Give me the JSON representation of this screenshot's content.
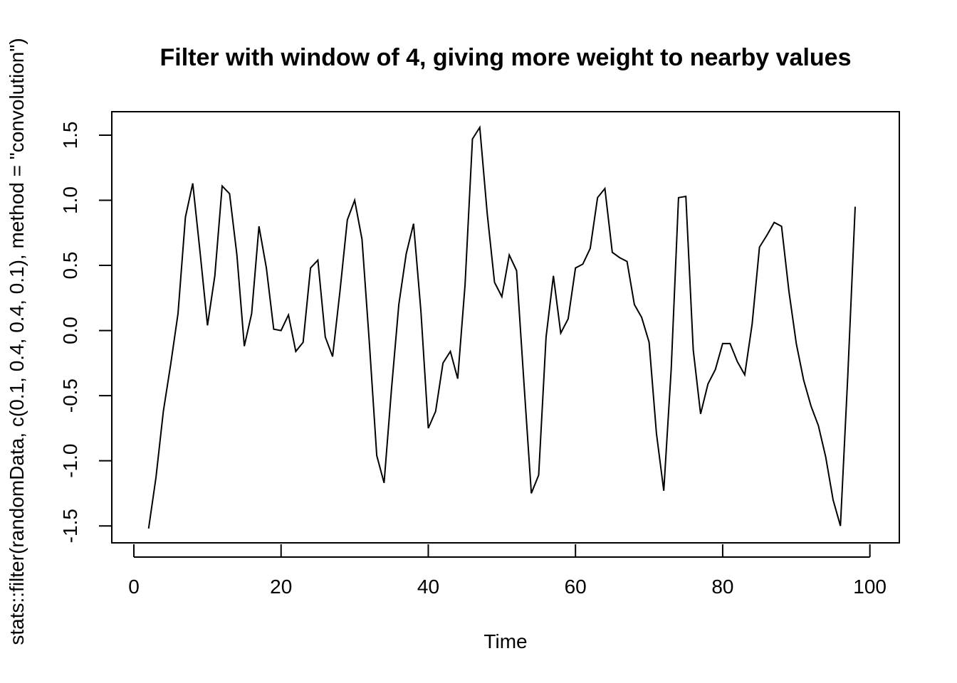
{
  "chart_data": {
    "type": "line",
    "title": "Filter with window of 4, giving more weight to nearby values",
    "xlabel": "Time",
    "ylabel": "stats::filter(randomData, c(0.1, 0.4, 0.4, 0.1), method = \"convolution\")",
    "xlim": [
      -3,
      104
    ],
    "ylim": [
      -1.63,
      1.68
    ],
    "xticks": [
      0,
      20,
      40,
      60,
      80,
      100
    ],
    "yticks": [
      -1.5,
      -1.0,
      -0.5,
      0.0,
      0.5,
      1.0,
      1.5
    ],
    "xtick_labels": [
      "0",
      "20",
      "40",
      "60",
      "80",
      "100"
    ],
    "ytick_labels": [
      "-1.5",
      "-1.0",
      "-0.5",
      "0.0",
      "0.5",
      "1.0",
      "1.5"
    ],
    "grid": false,
    "legend": "none",
    "color": "#000000",
    "x": [
      2,
      3,
      4,
      5,
      6,
      7,
      8,
      9,
      10,
      11,
      12,
      13,
      14,
      15,
      16,
      17,
      18,
      19,
      20,
      21,
      22,
      23,
      24,
      25,
      26,
      27,
      28,
      29,
      30,
      31,
      32,
      33,
      34,
      35,
      36,
      37,
      38,
      39,
      40,
      41,
      42,
      43,
      44,
      45,
      46,
      47,
      48,
      49,
      50,
      51,
      52,
      53,
      54,
      55,
      56,
      57,
      58,
      59,
      60,
      61,
      62,
      63,
      64,
      65,
      66,
      67,
      68,
      69,
      70,
      71,
      72,
      73,
      74,
      75,
      76,
      77,
      78,
      79,
      80,
      81,
      82,
      83,
      84,
      85,
      86,
      87,
      88,
      89,
      90,
      91,
      92,
      93,
      94,
      95,
      96,
      97,
      98
    ],
    "values": [
      -1.52,
      -1.13,
      -0.62,
      -0.26,
      0.13,
      0.87,
      1.13,
      0.6,
      0.04,
      0.42,
      1.11,
      1.05,
      0.58,
      -0.12,
      0.13,
      0.8,
      0.48,
      0.01,
      0.0,
      0.12,
      -0.16,
      -0.09,
      0.48,
      0.54,
      -0.05,
      -0.2,
      0.3,
      0.85,
      1.0,
      0.7,
      -0.1,
      -0.96,
      -1.17,
      -0.45,
      0.2,
      0.59,
      0.82,
      0.15,
      -0.75,
      -0.62,
      -0.25,
      -0.16,
      -0.37,
      0.35,
      1.47,
      1.56,
      0.9,
      0.37,
      0.26,
      0.58,
      0.46,
      -0.4,
      -1.25,
      -1.11,
      -0.05,
      0.42,
      -0.02,
      0.09,
      0.48,
      0.51,
      0.63,
      1.02,
      1.09,
      0.6,
      0.56,
      0.53,
      0.2,
      0.1,
      -0.09,
      -0.79,
      -1.23,
      -0.3,
      1.02,
      1.03,
      -0.15,
      -0.64,
      -0.41,
      -0.3,
      -0.1,
      -0.1,
      -0.24,
      -0.34,
      0.05,
      0.64,
      0.73,
      0.83,
      0.8,
      0.3,
      -0.1,
      -0.38,
      -0.58,
      -0.73,
      -0.97,
      -1.3,
      -1.5,
      -0.35,
      0.95
    ]
  }
}
